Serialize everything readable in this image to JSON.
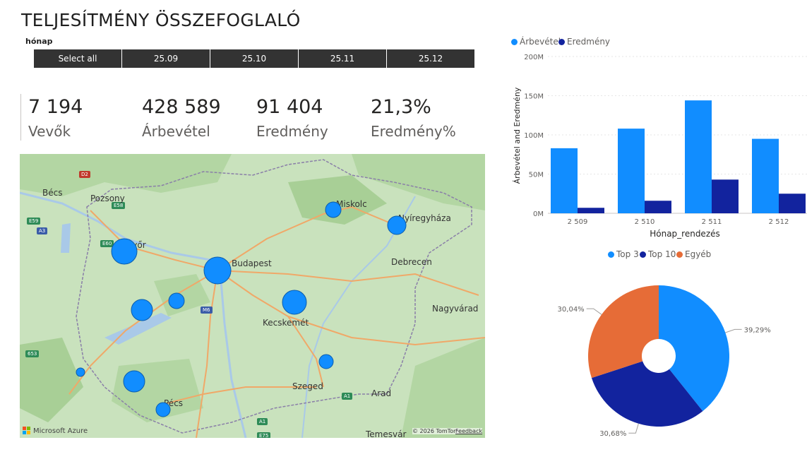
{
  "page": {
    "title": "TELJESÍTMÉNY ÖSSZEFOGLALÓ"
  },
  "slicer": {
    "title": "hónap",
    "items": [
      "Select all",
      "25.09",
      "25.10",
      "25.11",
      "25.12"
    ]
  },
  "kpis": [
    {
      "value": "7 194",
      "label": "Vevők"
    },
    {
      "value": "428 589",
      "label": "Árbevétel"
    },
    {
      "value": "91 404",
      "label": "Eredmény"
    },
    {
      "value": "21,3%",
      "label": "Eredmény%"
    }
  ],
  "map": {
    "cities": [
      "Bécs",
      "Pozsony",
      "Miskolc",
      "Nyíregyháza",
      "Győr",
      "Budapest",
      "Debrecen",
      "Nagyvárad",
      "Kecskemét",
      "Szeged",
      "Pécs",
      "Arad",
      "Temesvár"
    ],
    "road_shields": [
      "D2",
      "E58",
      "E59",
      "A3",
      "E60",
      "M6",
      "A1",
      "653",
      "A1",
      "E75"
    ],
    "footer_logo": "Microsoft Azure",
    "attribution": "© 2026 TomTom",
    "feedback": "Feedback",
    "bubble_color": "#118dff"
  },
  "colors": {
    "arbevetel": "#118dff",
    "eredmeny": "#12239e",
    "egyeb": "#e66c37",
    "map_land": "#c9e2bd"
  },
  "chart_data": [
    {
      "type": "bar",
      "legend": [
        "Árbevétel",
        "Eredmény"
      ],
      "legend_position": "top-left",
      "categories": [
        "2 509",
        "2 510",
        "2 511",
        "2 512"
      ],
      "series": [
        {
          "name": "Árbevétel",
          "values": [
            83,
            108,
            144,
            95
          ]
        },
        {
          "name": "Eredmény",
          "values": [
            7,
            16,
            43,
            25
          ]
        }
      ],
      "value_unit": "M",
      "ylim": [
        0,
        200
      ],
      "yticks": [
        "0M",
        "50M",
        "100M",
        "150M",
        "200M"
      ],
      "xlabel": "Hónap_rendezés",
      "ylabel": "Árbevétel and Eredmény",
      "grid": true
    },
    {
      "type": "pie",
      "legend": [
        "Top 3",
        "Top 10",
        "Egyéb"
      ],
      "legend_position": "top",
      "slices": [
        {
          "name": "Top 3",
          "value": 39.29,
          "label": "39,29%"
        },
        {
          "name": "Top 10",
          "value": 30.68,
          "label": "30,68%"
        },
        {
          "name": "Egyéb",
          "value": 30.04,
          "label": "30,04%"
        }
      ]
    }
  ]
}
